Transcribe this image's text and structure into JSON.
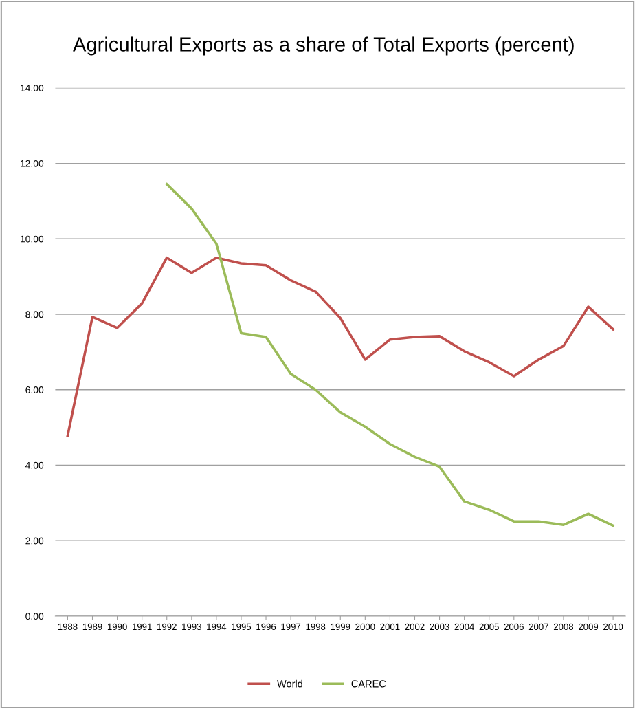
{
  "chart_data": {
    "type": "line",
    "title": "Agricultural Exports as a share of Total Exports (percent)",
    "categories": [
      "1988",
      "1989",
      "1990",
      "1991",
      "1992",
      "1993",
      "1994",
      "1995",
      "1996",
      "1997",
      "1998",
      "1999",
      "2000",
      "2001",
      "2002",
      "2003",
      "2004",
      "2005",
      "2006",
      "2007",
      "2008",
      "2009",
      "2010"
    ],
    "series": [
      {
        "name": "World",
        "color": "#c0504d",
        "values": [
          4.78,
          7.93,
          7.64,
          8.29,
          9.5,
          9.1,
          9.5,
          9.35,
          9.3,
          8.9,
          8.6,
          7.9,
          6.8,
          7.33,
          7.4,
          7.42,
          7.02,
          6.73,
          6.36,
          6.8,
          7.16,
          8.2,
          7.6
        ]
      },
      {
        "name": "CAREC",
        "color": "#9bbb59",
        "values": [
          null,
          null,
          null,
          null,
          11.45,
          10.8,
          9.87,
          7.5,
          7.4,
          6.42,
          6.0,
          5.4,
          5.02,
          4.56,
          4.22,
          3.96,
          3.04,
          2.82,
          2.51,
          2.51,
          2.42,
          2.71,
          2.4
        ]
      }
    ],
    "ylim": [
      0,
      14
    ],
    "yticks": [
      {
        "value": 0,
        "label": "0.00"
      },
      {
        "value": 2,
        "label": "2.00"
      },
      {
        "value": 4,
        "label": "4.00"
      },
      {
        "value": 6,
        "label": "6.00"
      },
      {
        "value": 8,
        "label": "8.00"
      },
      {
        "value": 10,
        "label": "10.00"
      },
      {
        "value": 12,
        "label": "12.00"
      },
      {
        "value": 14,
        "label": "14.00"
      }
    ],
    "grid": "y",
    "legend": "bottom",
    "marker": "none",
    "line_style": "solid"
  }
}
